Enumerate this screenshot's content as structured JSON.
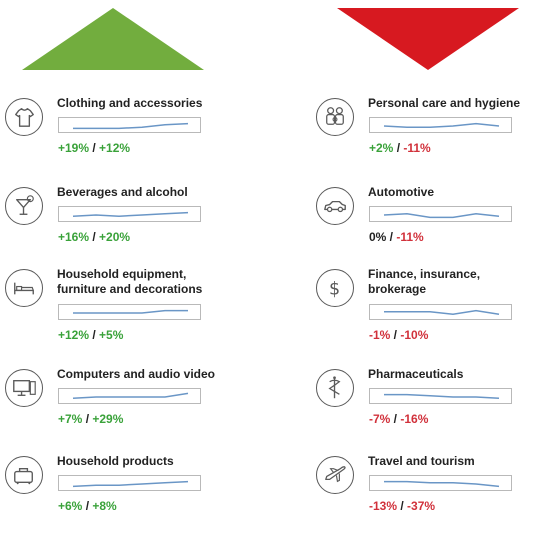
{
  "colors": {
    "increase_arrow": "#72ad3e",
    "decrease_arrow": "#d71920",
    "positive": "#3aa23a",
    "negative": "#d1313b",
    "neutral": "#222222",
    "sparkline": "#6a96c6"
  },
  "chart_data": {
    "type": "line",
    "columns": [
      {
        "direction": "increase",
        "arrow_icon": "up-triangle",
        "categories": [
          {
            "label": [
              "Clothing and accessories"
            ],
            "icon": "tshirt-icon",
            "change_a": "+19%",
            "change_b": "+12%",
            "trend": [
              3,
              3,
              3,
              4,
              6,
              7
            ]
          },
          {
            "label": [
              "Beverages and alcohol"
            ],
            "icon": "cocktail-icon",
            "change_a": "+16%",
            "change_b": "+20%",
            "trend": [
              4,
              5,
              4,
              5,
              6,
              7
            ]
          },
          {
            "label": [
              "Household equipment,",
              "furniture and decorations"
            ],
            "icon": "bed-icon",
            "change_a": "+12%",
            "change_b": "+5%",
            "trend": [
              5,
              5,
              5,
              5,
              7,
              7
            ]
          },
          {
            "label": [
              "Computers and audio video"
            ],
            "icon": "computer-icon",
            "change_a": "+7%",
            "change_b": "+29%",
            "trend": [
              4,
              5,
              5,
              5,
              5,
              8
            ]
          },
          {
            "label": [
              "Household products"
            ],
            "icon": "suitcase-icon",
            "change_a": "+6%",
            "change_b": "+8%",
            "trend": [
              3,
              4,
              4,
              5,
              6,
              7
            ]
          }
        ]
      },
      {
        "direction": "decrease",
        "arrow_icon": "down-triangle",
        "categories": [
          {
            "label": [
              "Personal care and hygiene"
            ],
            "icon": "family-icon",
            "change_a": "+2%",
            "change_b": "-11%",
            "trend": [
              5,
              4,
              4,
              5,
              7,
              5
            ]
          },
          {
            "label": [
              "Automotive"
            ],
            "icon": "car-icon",
            "change_a": "0%",
            "change_b": "-11%",
            "trend": [
              5,
              6,
              3,
              3,
              6,
              4
            ]
          },
          {
            "label": [
              "Finance, insurance,",
              "brokerage"
            ],
            "icon": "dollar-icon",
            "change_a": "-1%",
            "change_b": "-10%",
            "trend": [
              6,
              6,
              6,
              4,
              7,
              4
            ]
          },
          {
            "label": [
              "Pharmaceuticals"
            ],
            "icon": "caduceus-icon",
            "change_a": "-7%",
            "change_b": "-16%",
            "trend": [
              7,
              7,
              6,
              5,
              5,
              4
            ]
          },
          {
            "label": [
              "Travel and tourism"
            ],
            "icon": "airplane-icon",
            "change_a": "-13%",
            "change_b": "-37%",
            "trend": [
              7,
              7,
              6,
              6,
              5,
              3
            ]
          }
        ]
      }
    ]
  }
}
